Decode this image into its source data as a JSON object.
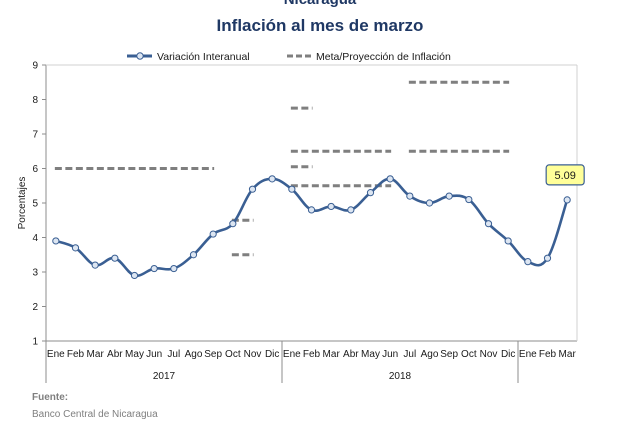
{
  "source": {
    "label": "Fuente:",
    "text": "Banco Central de Nicaragua"
  },
  "colors": {
    "line": "#3a5f93",
    "marker_fill": "#dde6f2",
    "meta": "#7f7f7f",
    "callout_fill": "#ffff99",
    "callout_border": "#3a5f93",
    "title": "#1f3864"
  },
  "chart_data": {
    "type": "line",
    "title": "Nicaragua",
    "subtitle": "Inflación al mes de marzo",
    "ylabel": "Porcentajes",
    "xlabel": "",
    "ylim": [
      1,
      9
    ],
    "yticks": [
      1,
      2,
      3,
      4,
      5,
      6,
      7,
      8,
      9
    ],
    "grid": false,
    "legend_position": "top",
    "categories": [
      "Ene",
      "Feb",
      "Mar",
      "Abr",
      "May",
      "Jun",
      "Jul",
      "Ago",
      "Sep",
      "Oct",
      "Nov",
      "Dic",
      "Ene",
      "Feb",
      "Mar",
      "Abr",
      "May",
      "Jun",
      "Jul",
      "Ago",
      "Sep",
      "Oct",
      "Nov",
      "Dic",
      "Ene",
      "Feb",
      "Mar"
    ],
    "year_groups": [
      {
        "label": "2017",
        "start": 0,
        "end": 11
      },
      {
        "label": "2018",
        "start": 12,
        "end": 23
      }
    ],
    "series": [
      {
        "name": "Variación Interanual",
        "values": [
          3.9,
          3.7,
          3.2,
          3.4,
          2.9,
          3.1,
          3.1,
          3.5,
          4.1,
          4.4,
          5.4,
          5.7,
          5.4,
          4.8,
          4.9,
          4.8,
          5.3,
          5.7,
          5.2,
          5.0,
          5.2,
          5.1,
          4.4,
          3.9,
          3.3,
          3.4,
          5.09
        ]
      }
    ],
    "meta_series_name": "Meta/Proyección de Inflación",
    "meta_segments": [
      {
        "from": 0,
        "to": 8,
        "value": 6.0
      },
      {
        "from": 9,
        "to": 10,
        "value": 4.5
      },
      {
        "from": 9,
        "to": 10,
        "value": 3.5
      },
      {
        "from": 12,
        "to": 13,
        "value": 7.75
      },
      {
        "from": 12,
        "to": 13,
        "value": 6.05
      },
      {
        "from": 12,
        "to": 17,
        "value": 6.5
      },
      {
        "from": 12,
        "to": 17,
        "value": 5.5
      },
      {
        "from": 18,
        "to": 23,
        "value": 8.5
      },
      {
        "from": 18,
        "to": 23,
        "value": 6.5
      }
    ],
    "annotation": {
      "index": 26,
      "text": "5.09"
    }
  }
}
